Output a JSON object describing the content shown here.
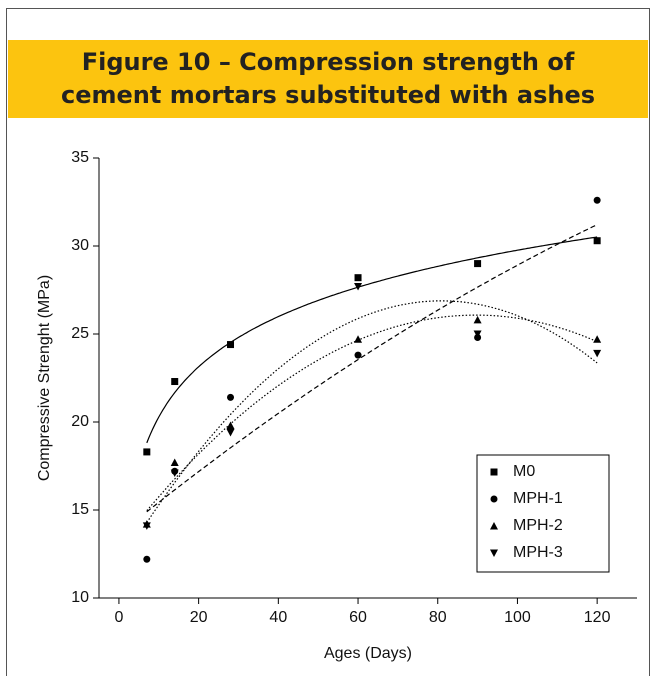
{
  "chart_data": {
    "type": "scatter",
    "title": "Figure 10 – Compression strength of cement mortars substituted with ashes",
    "x_label": "Ages (Days)",
    "y_label": "Compressive Strenght (MPa)",
    "xlim": [
      -5,
      130
    ],
    "xticks": [
      0,
      20,
      40,
      60,
      80,
      100,
      120
    ],
    "ylim": [
      10,
      35
    ],
    "yticks": [
      10,
      15,
      20,
      25,
      30,
      35
    ],
    "legend": "lower right",
    "x": [
      7,
      14,
      28,
      60,
      90,
      120
    ],
    "series": [
      {
        "name": "M0",
        "color": "#000000",
        "marker": "square",
        "trendline": "log",
        "line_style": "solid",
        "values": [
          18.3,
          22.3,
          24.4,
          28.2,
          29.0,
          30.3
        ]
      },
      {
        "name": "MPH-1",
        "color": "#000000",
        "marker": "circle",
        "trendline": "poly2",
        "line_style": "dashed",
        "values": [
          12.2,
          17.2,
          21.4,
          23.8,
          24.8,
          32.6
        ]
      },
      {
        "name": "MPH-2",
        "color": "#000000",
        "marker": "triangle-up",
        "trendline": "poly2",
        "line_style": "dotted",
        "values": [
          14.2,
          17.7,
          19.8,
          24.7,
          25.8,
          24.7
        ]
      },
      {
        "name": "MPH-3",
        "color": "#000000",
        "marker": "triangle-down",
        "trendline": "poly2",
        "line_style": "dotted",
        "values": [
          14.1,
          17.1,
          19.4,
          27.7,
          25.0,
          23.9
        ]
      }
    ]
  }
}
